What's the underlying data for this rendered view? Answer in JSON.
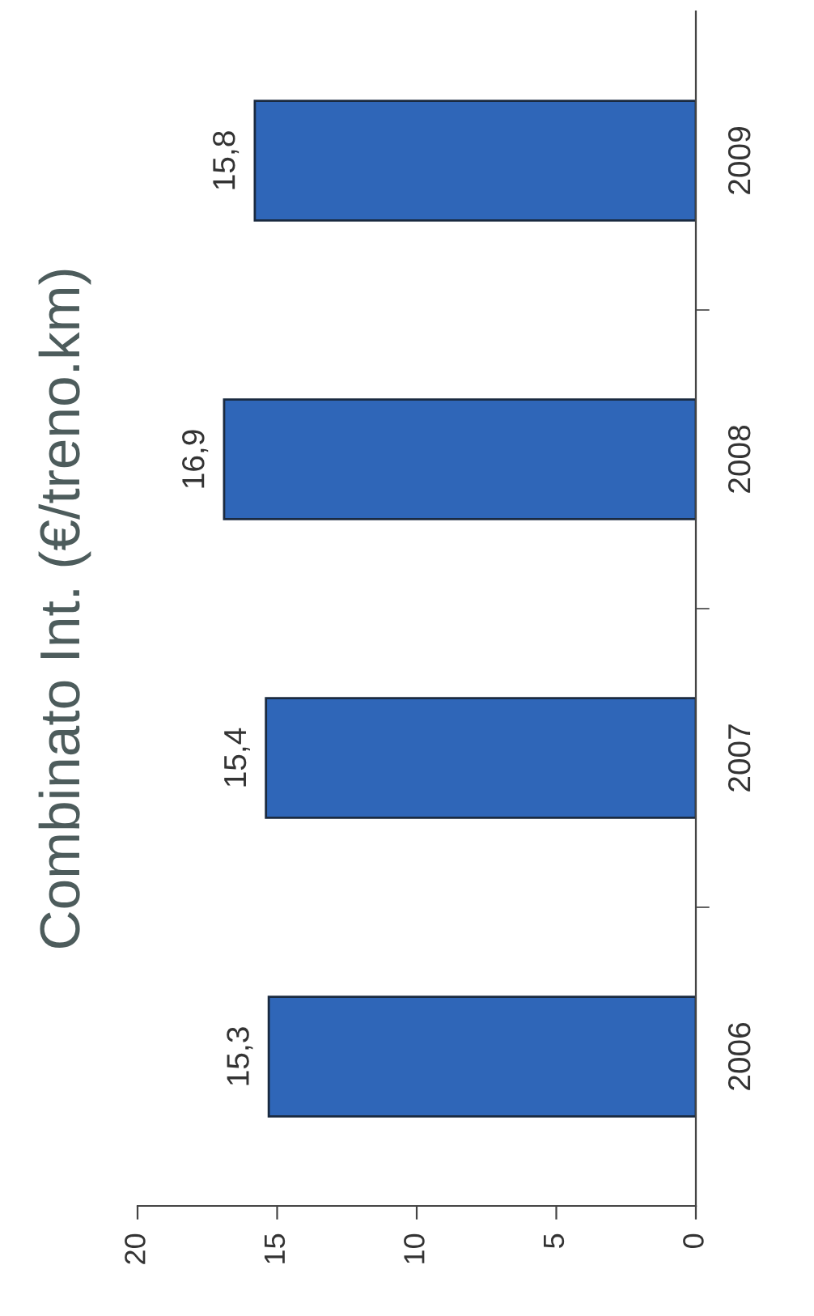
{
  "chart_data": {
    "type": "bar",
    "orientation": "horizontal",
    "title": "Combinato Int. (€/treno.km)",
    "categories": [
      "2009",
      "2008",
      "2007",
      "2006"
    ],
    "values": [
      15.8,
      16.9,
      15.4,
      15.3
    ],
    "value_labels": [
      "15,8",
      "16,9",
      "15,4",
      "15,3"
    ],
    "color": "#2f66b8",
    "xlim": [
      20,
      0
    ],
    "xticks": [
      0,
      5,
      10,
      15,
      20
    ],
    "grid": false
  }
}
